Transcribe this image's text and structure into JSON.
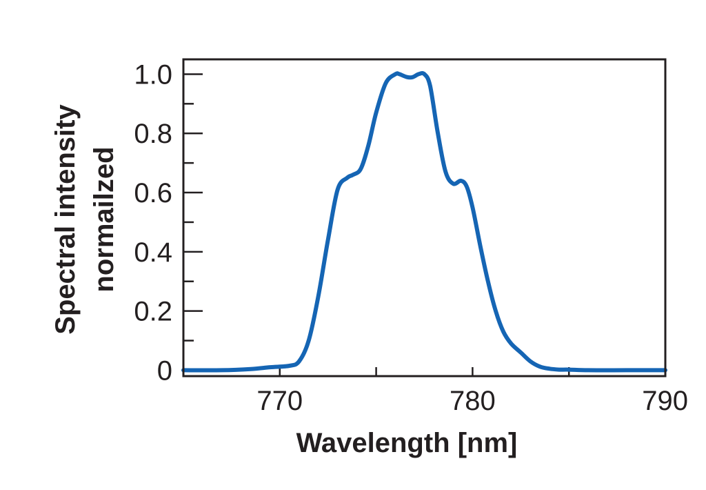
{
  "chart_data": {
    "type": "line",
    "title": "",
    "xlabel": "Wavelength [nm]",
    "ylabel": [
      "Spectral intensity",
      "normailzed"
    ],
    "xlim": [
      765,
      790
    ],
    "ylim": [
      -0.02,
      1.05
    ],
    "x_ticks": [
      770,
      780,
      790
    ],
    "x_tick_labels": [
      "770",
      "780",
      "790"
    ],
    "x_minor_ticks": [
      765,
      770,
      775,
      780,
      785
    ],
    "y_ticks": [
      0,
      0.2,
      0.4,
      0.6,
      0.8,
      1.0
    ],
    "y_tick_labels": [
      "0",
      "0.2",
      "0.4",
      "0.6",
      "0.8",
      "1.0"
    ],
    "y_minor_ticks": [
      0.1,
      0.3,
      0.5,
      0.7,
      0.9
    ],
    "grid": false,
    "series": [
      {
        "color": "#1565b4",
        "x": [
          765.0,
          767.0,
          768.5,
          769.5,
          770.5,
          771.0,
          771.5,
          772.0,
          772.5,
          773.0,
          773.5,
          773.8,
          774.2,
          774.6,
          775.0,
          775.5,
          776.0,
          776.2,
          776.6,
          776.9,
          777.2,
          777.5,
          777.8,
          778.2,
          778.6,
          779.0,
          779.4,
          779.7,
          780.0,
          780.4,
          780.8,
          781.2,
          781.6,
          782.0,
          782.5,
          783.0,
          783.5,
          784.0,
          784.5,
          785.0,
          786.0,
          788.0,
          790.0
        ],
        "y": [
          0.0,
          0.0,
          0.004,
          0.01,
          0.015,
          0.03,
          0.1,
          0.25,
          0.44,
          0.61,
          0.65,
          0.66,
          0.68,
          0.76,
          0.87,
          0.97,
          1.0,
          1.0,
          0.99,
          0.99,
          1.0,
          1.0,
          0.96,
          0.8,
          0.67,
          0.63,
          0.64,
          0.62,
          0.55,
          0.42,
          0.3,
          0.2,
          0.13,
          0.09,
          0.06,
          0.03,
          0.012,
          0.005,
          0.002,
          0.002,
          0.0,
          0.0,
          0.0
        ]
      }
    ]
  }
}
